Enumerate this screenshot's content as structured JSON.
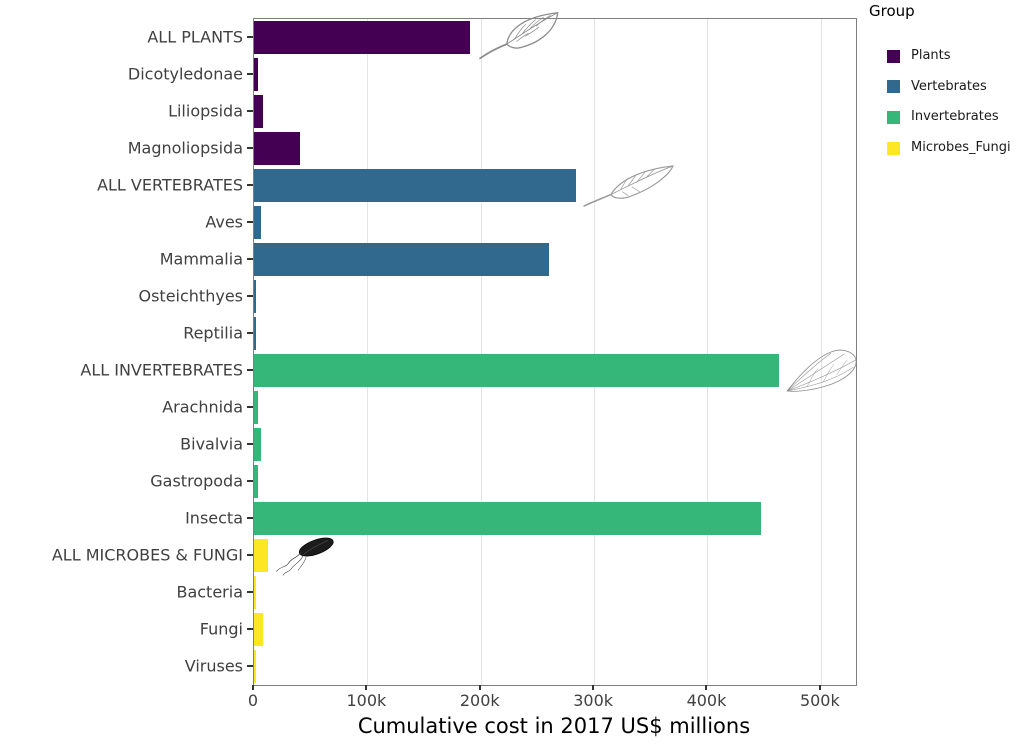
{
  "chart_data": {
    "type": "bar",
    "orientation": "horizontal",
    "title": "",
    "xlabel": "Cumulative cost in 2017 US$ millions",
    "ylabel": "",
    "xlim": [
      0,
      531000
    ],
    "grid": "major-vertical-only",
    "x_ticks": [
      {
        "value": 0,
        "label": "0"
      },
      {
        "value": 100000,
        "label": "100k"
      },
      {
        "value": 200000,
        "label": "200k"
      },
      {
        "value": 300000,
        "label": "300k"
      },
      {
        "value": 400000,
        "label": "400k"
      },
      {
        "value": 500000,
        "label": "500k"
      }
    ],
    "rows": [
      {
        "label": "ALL PLANTS",
        "group": "Plants",
        "value": 190500,
        "icon": "leaf-icon"
      },
      {
        "label": "Dicotyledonae",
        "group": "Plants",
        "value": 3500
      },
      {
        "label": "Liliopsida",
        "group": "Plants",
        "value": 7700
      },
      {
        "label": "Magnoliopsida",
        "group": "Plants",
        "value": 40300
      },
      {
        "label": "ALL VERTEBRATES",
        "group": "Vertebrates",
        "value": 283600,
        "icon": "feather-icon"
      },
      {
        "label": "Aves",
        "group": "Vertebrates",
        "value": 6500
      },
      {
        "label": "Mammalia",
        "group": "Vertebrates",
        "value": 260400
      },
      {
        "label": "Osteichthyes",
        "group": "Vertebrates",
        "value": 1000
      },
      {
        "label": "Reptilia",
        "group": "Vertebrates",
        "value": 1200
      },
      {
        "label": "ALL INVERTEBRATES",
        "group": "Invertebrates",
        "value": 463300,
        "icon": "insect-wing-icon"
      },
      {
        "label": "Arachnida",
        "group": "Invertebrates",
        "value": 3300
      },
      {
        "label": "Bivalvia",
        "group": "Invertebrates",
        "value": 6500
      },
      {
        "label": "Gastropoda",
        "group": "Invertebrates",
        "value": 3500
      },
      {
        "label": "Insecta",
        "group": "Invertebrates",
        "value": 447500
      },
      {
        "label": "ALL MICROBES & FUNGI",
        "group": "Microbes_Fungi",
        "value": 12400,
        "icon": "bacterium-icon"
      },
      {
        "label": "Bacteria",
        "group": "Microbes_Fungi",
        "value": 2000
      },
      {
        "label": "Fungi",
        "group": "Microbes_Fungi",
        "value": 8200
      },
      {
        "label": "Viruses",
        "group": "Microbes_Fungi",
        "value": 1100
      }
    ],
    "group_colors": {
      "Plants": "#440154",
      "Vertebrates": "#31688E",
      "Invertebrates": "#35B779",
      "Microbes_Fungi": "#FDE725"
    },
    "legend": {
      "title": "Group",
      "position": "right",
      "entries": [
        {
          "label": "Plants",
          "color": "#440154"
        },
        {
          "label": "Vertebrates",
          "color": "#31688E"
        },
        {
          "label": "Invertebrates",
          "color": "#35B779"
        },
        {
          "label": "Microbes_Fungi",
          "color": "#FDE725"
        }
      ]
    },
    "icons": [
      "leaf-icon",
      "feather-icon",
      "insect-wing-icon",
      "bacterium-icon"
    ]
  }
}
